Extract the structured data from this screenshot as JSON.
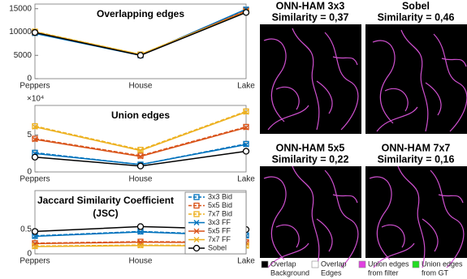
{
  "chart_data": [
    {
      "type": "line",
      "title": [
        "Overlapping edges"
      ],
      "categories": [
        "Peppers",
        "House",
        "Lake"
      ],
      "ylim": [
        0,
        16000
      ],
      "yticks": [
        0,
        5000,
        10000,
        15000
      ],
      "series": [
        {
          "color": "#0072bd",
          "marker": "square",
          "dashed": true,
          "values": [
            9800,
            5000,
            14800
          ]
        },
        {
          "color": "#d95319",
          "marker": "square",
          "dashed": true,
          "values": [
            10000,
            5100,
            14600
          ]
        },
        {
          "color": "#edb120",
          "marker": "square",
          "dashed": true,
          "values": [
            10100,
            5200,
            14400
          ]
        },
        {
          "color": "#0072bd",
          "marker": "x",
          "dashed": false,
          "values": [
            9700,
            5000,
            14900
          ]
        },
        {
          "color": "#d95319",
          "marker": "x",
          "dashed": false,
          "values": [
            9900,
            5100,
            14500
          ]
        },
        {
          "color": "#edb120",
          "marker": "x",
          "dashed": false,
          "values": [
            10000,
            5200,
            14300
          ]
        },
        {
          "color": "#000000",
          "marker": "circle",
          "dashed": false,
          "values": [
            9900,
            5000,
            14200
          ]
        }
      ]
    },
    {
      "type": "line",
      "title": [
        "Union edges"
      ],
      "y_multiplier": "×10⁴",
      "categories": [
        "Peppers",
        "House",
        "Lake"
      ],
      "ylim": [
        0,
        9
      ],
      "yticks": [
        0,
        5
      ],
      "series": [
        {
          "color": "#0072bd",
          "marker": "square",
          "dashed": true,
          "values": [
            2.6,
            1.0,
            3.8
          ]
        },
        {
          "color": "#d95319",
          "marker": "square",
          "dashed": true,
          "values": [
            4.5,
            2.2,
            6.1
          ]
        },
        {
          "color": "#edb120",
          "marker": "square",
          "dashed": true,
          "values": [
            6.2,
            3.0,
            8.2
          ]
        },
        {
          "color": "#0072bd",
          "marker": "x",
          "dashed": false,
          "values": [
            2.5,
            1.0,
            3.7
          ]
        },
        {
          "color": "#d95319",
          "marker": "x",
          "dashed": false,
          "values": [
            4.4,
            2.1,
            6.0
          ]
        },
        {
          "color": "#edb120",
          "marker": "x",
          "dashed": false,
          "values": [
            6.1,
            2.9,
            8.1
          ]
        },
        {
          "color": "#000000",
          "marker": "circle",
          "dashed": false,
          "values": [
            2.0,
            0.8,
            2.8
          ]
        }
      ]
    },
    {
      "type": "line",
      "title": [
        "Jaccard Similarity Coefficient",
        "(JSC)"
      ],
      "categories": [
        "Peppers",
        "House",
        "Lake"
      ],
      "ylim": [
        0,
        1.3
      ],
      "yticks": [
        0,
        0.5
      ],
      "legend": "upper right",
      "series": [
        {
          "name": "3x3 Bid",
          "color": "#0072bd",
          "marker": "square",
          "dashed": true,
          "values": [
            0.37,
            0.46,
            0.38
          ]
        },
        {
          "name": "5x5 Bid",
          "color": "#d95319",
          "marker": "square",
          "dashed": true,
          "values": [
            0.22,
            0.25,
            0.24
          ]
        },
        {
          "name": "7x7 Bid",
          "color": "#edb120",
          "marker": "square",
          "dashed": true,
          "values": [
            0.16,
            0.18,
            0.17
          ]
        },
        {
          "name": "3x3 FF",
          "color": "#0072bd",
          "marker": "x",
          "dashed": false,
          "values": [
            0.36,
            0.45,
            0.37
          ]
        },
        {
          "name": "5x5 FF",
          "color": "#d95319",
          "marker": "x",
          "dashed": false,
          "values": [
            0.21,
            0.24,
            0.23
          ]
        },
        {
          "name": "7x7 FF",
          "color": "#edb120",
          "marker": "x",
          "dashed": false,
          "values": [
            0.15,
            0.17,
            0.16
          ]
        },
        {
          "name": "Sobel",
          "color": "#000000",
          "marker": "circle",
          "dashed": false,
          "values": [
            0.46,
            0.56,
            0.5
          ]
        }
      ]
    }
  ],
  "images": [
    {
      "title": "ONN-HAM 3x3",
      "subtitle": "Similarity = 0,37"
    },
    {
      "title": "Sobel",
      "subtitle": "Similarity = 0,46"
    },
    {
      "title": "ONN-HAM 5x5",
      "subtitle": "Similarity = 0,22"
    },
    {
      "title": "ONN-HAM 7x7",
      "subtitle": "Similarity = 0,16"
    }
  ],
  "image_legend": [
    {
      "label": [
        "Overlap",
        "Background"
      ],
      "color": "#000000"
    },
    {
      "label": [
        "Overlap",
        "Edges"
      ],
      "color": "#ffffff"
    },
    {
      "label": [
        "Union edges",
        "from filter"
      ],
      "color": "#e040e0"
    },
    {
      "label": [
        "Union edges",
        "from GT"
      ],
      "color": "#22dd22"
    }
  ]
}
